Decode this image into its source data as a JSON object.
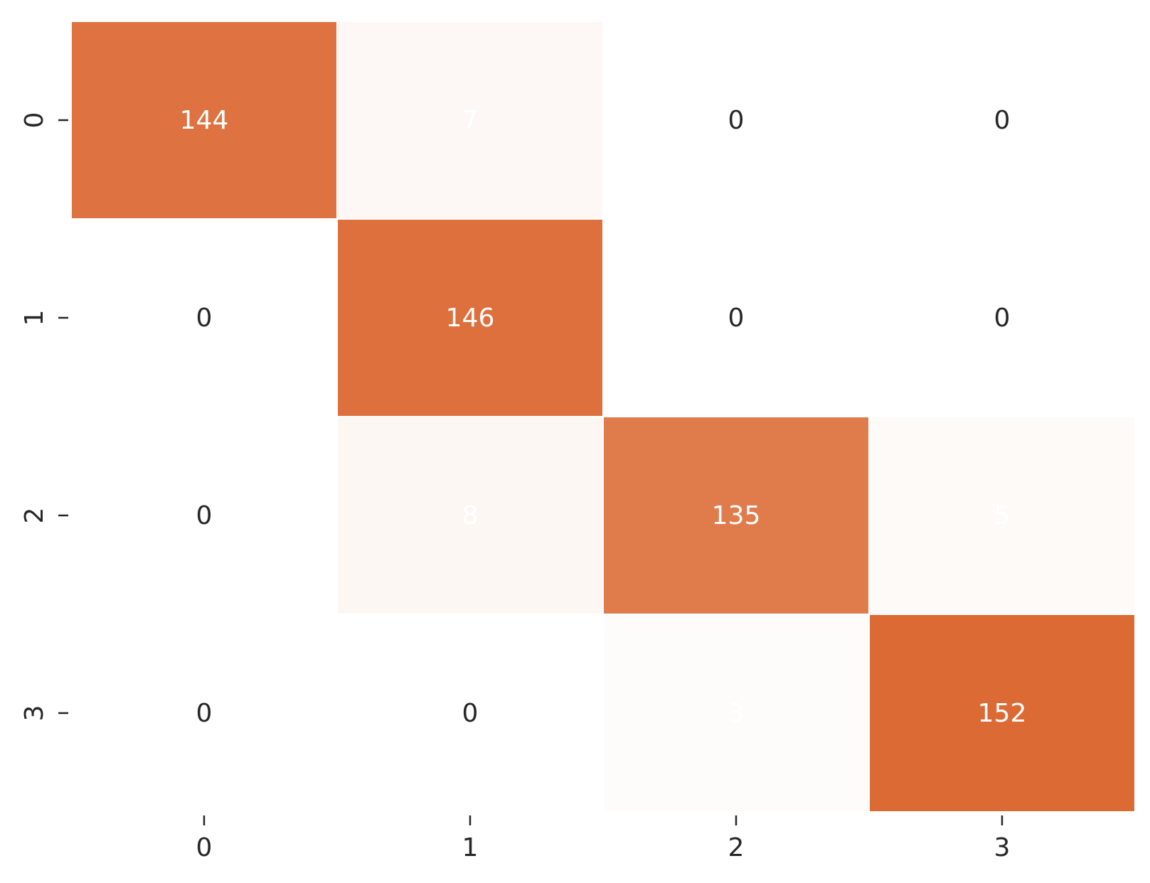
{
  "chart_data": {
    "type": "heatmap",
    "title": "",
    "xlabel": "",
    "ylabel": "",
    "x_categories": [
      "0",
      "1",
      "2",
      "3"
    ],
    "y_categories": [
      "0",
      "1",
      "2",
      "3"
    ],
    "values": [
      [
        144,
        7,
        0,
        0
      ],
      [
        0,
        146,
        0,
        0
      ],
      [
        0,
        8,
        135,
        5
      ],
      [
        0,
        0,
        3,
        152
      ]
    ],
    "color_range": [
      0,
      152
    ],
    "colors": {
      "low": "#ffffff",
      "high": "#dc6a35",
      "text_on_color": "#ffffff",
      "text_on_zero": "#262626",
      "tick": "#262626"
    },
    "colorbar": false,
    "grid": false
  }
}
